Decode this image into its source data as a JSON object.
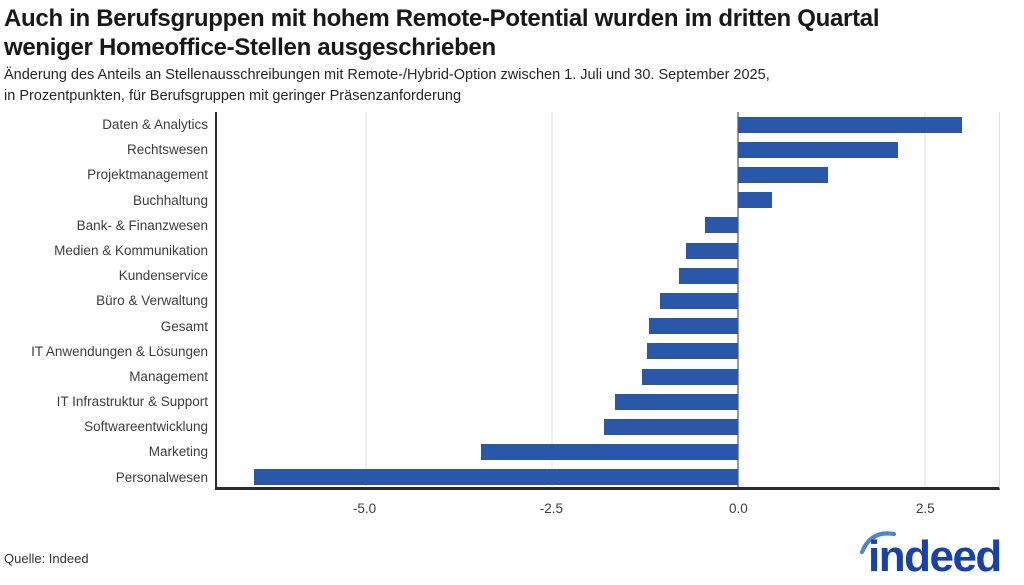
{
  "header": {
    "title_line1": "Auch in Berufsgruppen mit hohem Remote-Potential wurden im dritten Quartal",
    "title_line2": "weniger Homeoffice-Stellen ausgeschrieben",
    "subtitle_line1": "Änderung des Anteils an Stellenausschreibungen mit Remote-/Hybrid-Option zwischen 1. Juli und 30. September 2025,",
    "subtitle_line2": "in Prozentpunkten, für Berufsgruppen mit geringer Präsenzanforderung"
  },
  "chart_data": {
    "type": "bar",
    "orientation": "horizontal",
    "title": "Auch in Berufsgruppen mit hohem Remote-Potential wurden im dritten Quartal weniger Homeoffice-Stellen ausgeschrieben",
    "subtitle": "Änderung des Anteils an Stellenausschreibungen mit Remote-/Hybrid-Option zwischen 1. Juli und 30. September 2025, in Prozentpunkten, für Berufsgruppen mit geringer Präsenzanforderung",
    "categories": [
      "Daten & Analytics",
      "Rechtswesen",
      "Projektmanagement",
      "Buchhaltung",
      "Bank- & Finanzwesen",
      "Medien & Kommunikation",
      "Kundenservice",
      "Büro & Verwaltung",
      "Gesamt",
      "IT Anwendungen & Lösungen",
      "Management",
      "IT Infrastruktur & Support",
      "Softwareentwicklung",
      "Marketing",
      "Personalwesen"
    ],
    "values": [
      3.0,
      2.15,
      1.2,
      0.45,
      -0.45,
      -0.7,
      -0.8,
      -1.05,
      -1.2,
      -1.22,
      -1.3,
      -1.65,
      -1.8,
      -3.45,
      -6.5
    ],
    "xlim": [
      -7.0,
      3.5
    ],
    "xticks": [
      -5.0,
      -2.5,
      0.0,
      2.5
    ],
    "xtick_labels": [
      "-5.0",
      "-2.5",
      "0.0",
      "2.5"
    ],
    "bar_color": "#2b57a8",
    "grid": "vertical",
    "legend": "none"
  },
  "footer": {
    "source": "Quelle: Indeed",
    "logo_text": "indeed",
    "logo_wordmark_color": "#1741ad",
    "logo_arc_color": "#4e86c9"
  }
}
